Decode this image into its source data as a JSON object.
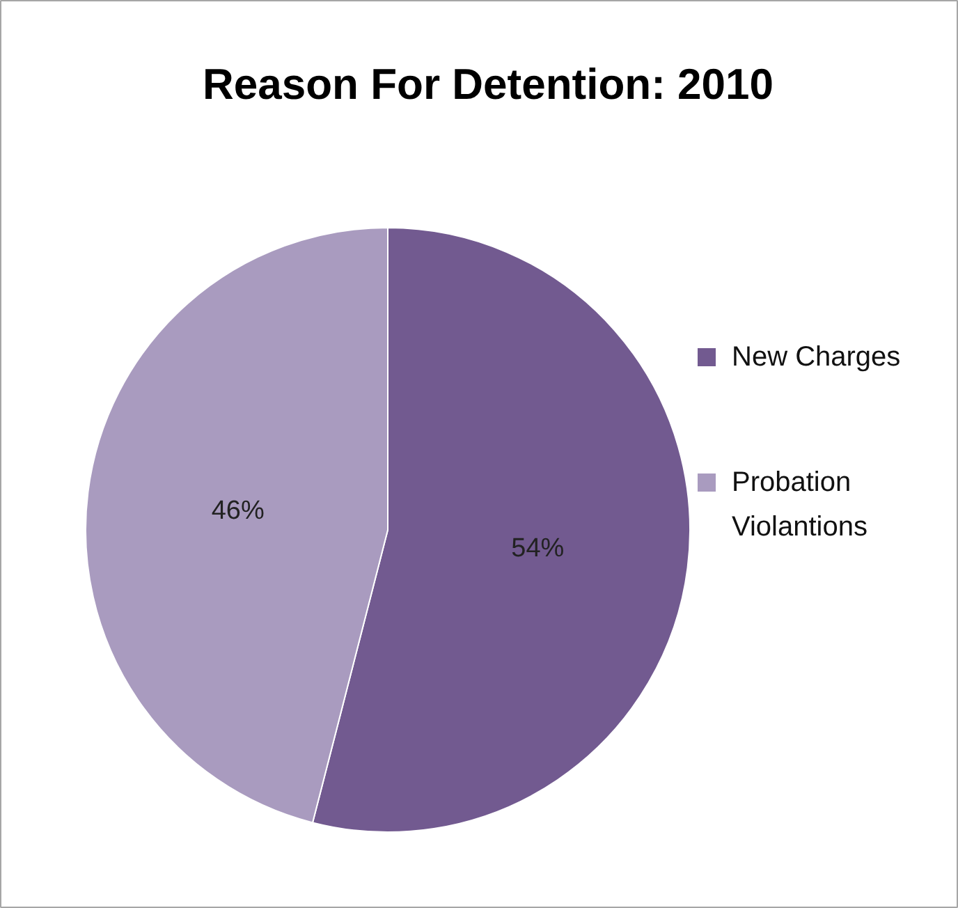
{
  "chart_data": {
    "type": "pie",
    "title": "Reason For Detention: 2010",
    "categories": [
      "New Charges",
      "Probation Violantions"
    ],
    "values": [
      54,
      46
    ],
    "colors": [
      "#725a90",
      "#a99bbf"
    ],
    "value_labels": [
      "54%",
      "46%"
    ],
    "legend": "right"
  }
}
